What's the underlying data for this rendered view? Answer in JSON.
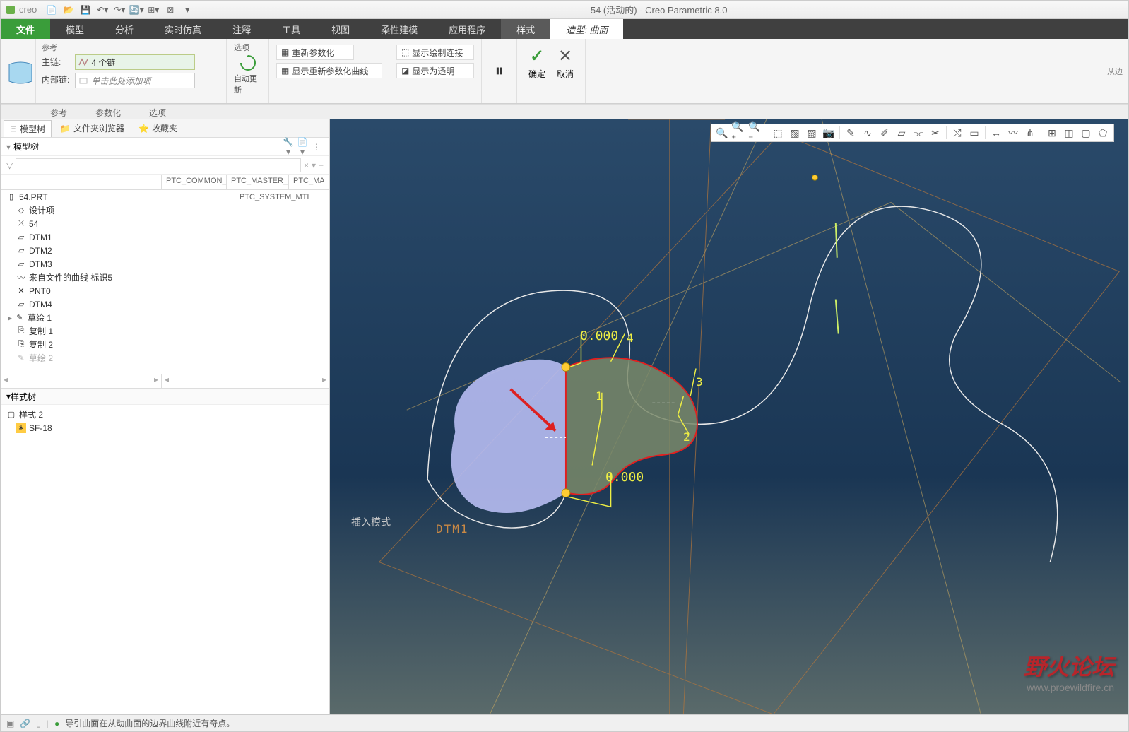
{
  "app": {
    "name": "creo",
    "title": "54 (活动的) - Creo Parametric 8.0"
  },
  "ribbon_tabs": {
    "file": "文件",
    "items": [
      "模型",
      "分析",
      "实时仿真",
      "注释",
      "工具",
      "视图",
      "柔性建模",
      "应用程序"
    ],
    "ctx1": "样式",
    "ctx2": "造型: 曲面"
  },
  "ribbon": {
    "ref": {
      "title": "参考",
      "main_label": "主链:",
      "main_value": "4 个链",
      "inner_label": "内部链:",
      "inner_placeholder": "单击此处添加项"
    },
    "sec_tabs": [
      "参考",
      "参数化",
      "选项"
    ],
    "opt": {
      "title": "选项",
      "auto_update": "自动更新",
      "reparam": "重新参数化",
      "show_sketch": "显示绘制连接",
      "show_reparam": "显示重新参数化曲线",
      "show_trans": "显示为透明"
    },
    "pause_icon": "⏸",
    "ok": {
      "label": "确定",
      "icon": "✓",
      "color": "#3a9d3a"
    },
    "cancel": {
      "label": "取消",
      "icon": "✕",
      "color": "#555"
    },
    "right_label": "从边"
  },
  "nav": {
    "tabs": {
      "model_tree": "模型树",
      "folder": "文件夹浏览器",
      "fav": "收藏夹"
    },
    "tree_title": "模型树",
    "columns": [
      "",
      "PTC_COMMON_",
      "PTC_MASTER_M",
      "PTC_MA"
    ],
    "root": "54.PRT",
    "root_meta": "PTC_SYSTEM_MTI",
    "items": [
      {
        "icon": "design",
        "label": "设计项"
      },
      {
        "icon": "csys",
        "label": "54"
      },
      {
        "icon": "datum",
        "label": "DTM1"
      },
      {
        "icon": "datum",
        "label": "DTM2"
      },
      {
        "icon": "datum",
        "label": "DTM3"
      },
      {
        "icon": "curve",
        "label": "来自文件的曲线 标识5"
      },
      {
        "icon": "point",
        "label": "PNT0"
      },
      {
        "icon": "datum",
        "label": "DTM4"
      },
      {
        "icon": "sketch",
        "label": "草绘 1"
      },
      {
        "icon": "copy",
        "label": "复制 1"
      },
      {
        "icon": "copy",
        "label": "复制 2"
      },
      {
        "icon": "sketch-dim",
        "label": "草绘 2"
      }
    ],
    "style_tree_title": "样式树",
    "style_root": "样式 2",
    "style_child": "SF-18"
  },
  "viewport": {
    "mode_label": "插入模式",
    "dtm_label": "DTM1",
    "dim1": "0.000",
    "dim2": "0.000",
    "markers": [
      "1",
      "2",
      "3",
      "4"
    ],
    "surface_fill": "#b7bdf2",
    "surface2_fill": "#7a8a6a",
    "curve_color": "#e8e8e8",
    "boundary_color": "#e02020",
    "datum_line_color": "#b8773a",
    "construction_color": "#c8a860",
    "dim_color": "#eeee44",
    "point_fill": "#ffcc33",
    "bg_top": "#2a4a6a",
    "bg_bottom": "#5a6a6a",
    "arrow_color": "#dd2020"
  },
  "status": {
    "msg": "导引曲面在从动曲面的边界曲线附近有奇点。"
  },
  "watermark": {
    "line1": "野火论坛",
    "line2": "www.proewildfire.cn"
  }
}
